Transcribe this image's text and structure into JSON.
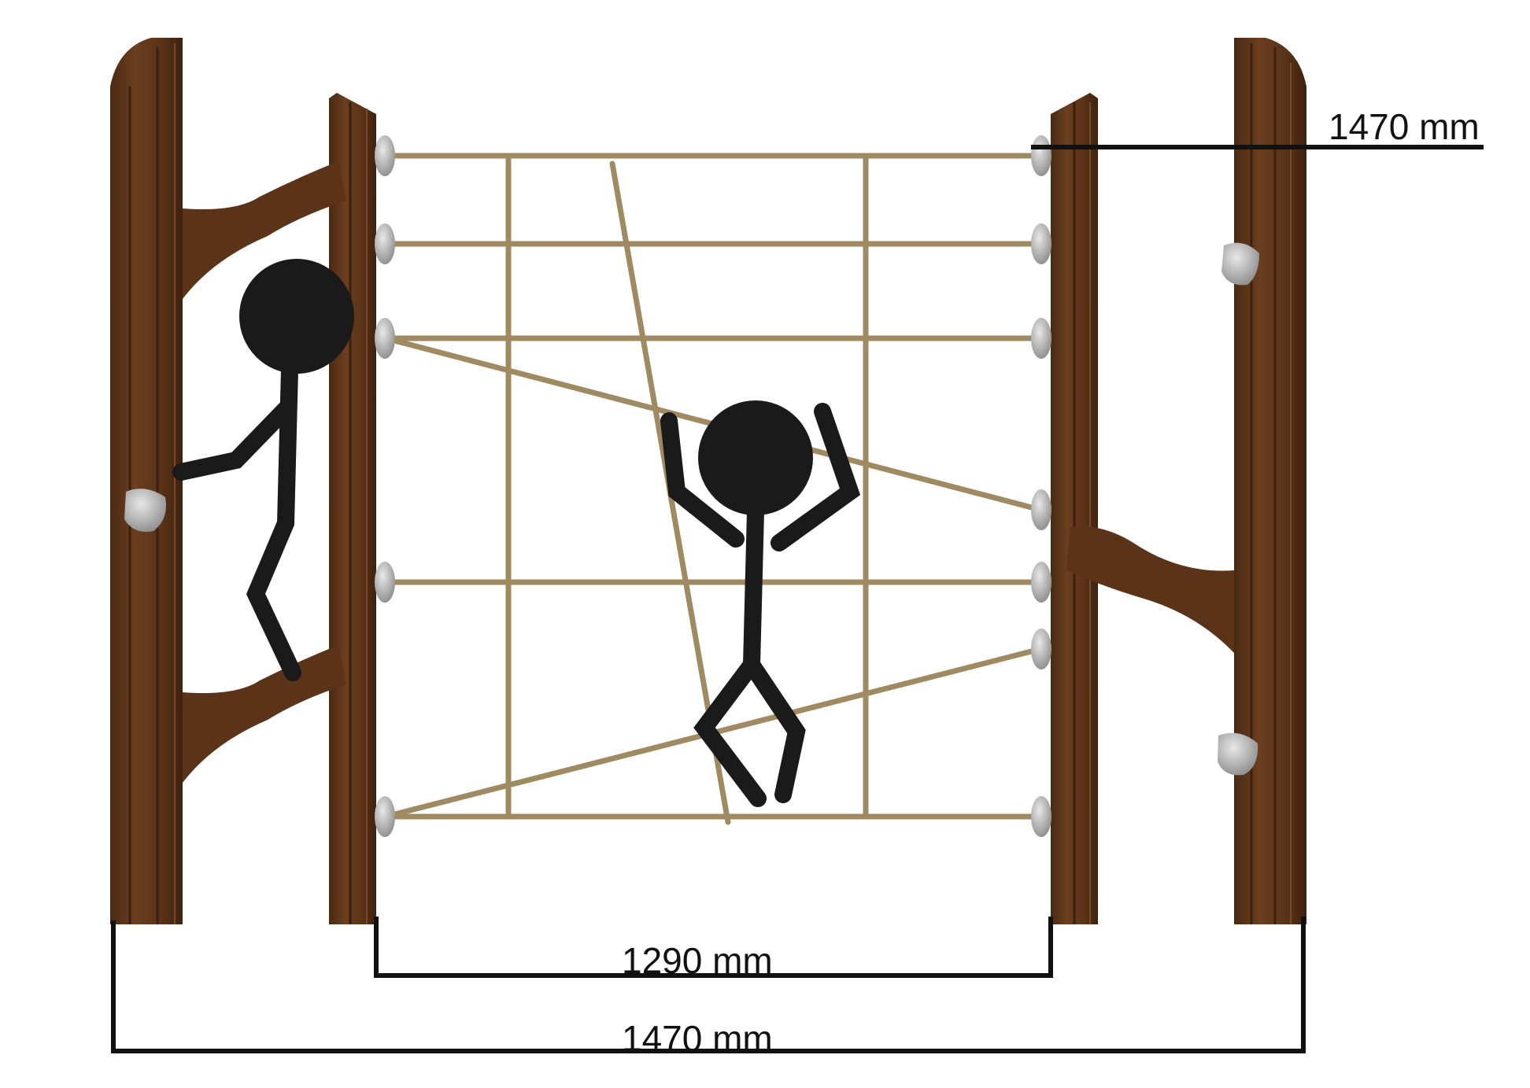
{
  "dimensions": {
    "height_label": "1470 mm",
    "inner_width_label": "1290 mm",
    "outer_width_label": "1470 mm"
  },
  "colors": {
    "post_dark": "#4a2a14",
    "post_mid": "#6b3e1f",
    "post_light": "#8a5530",
    "rope": "#a08a62",
    "hold": "#b8b8b8",
    "figure": "#1a1a1a",
    "dimension_line": "#111111"
  },
  "icons": [
    "climbing-hold-icon",
    "stick-figure-icon"
  ]
}
